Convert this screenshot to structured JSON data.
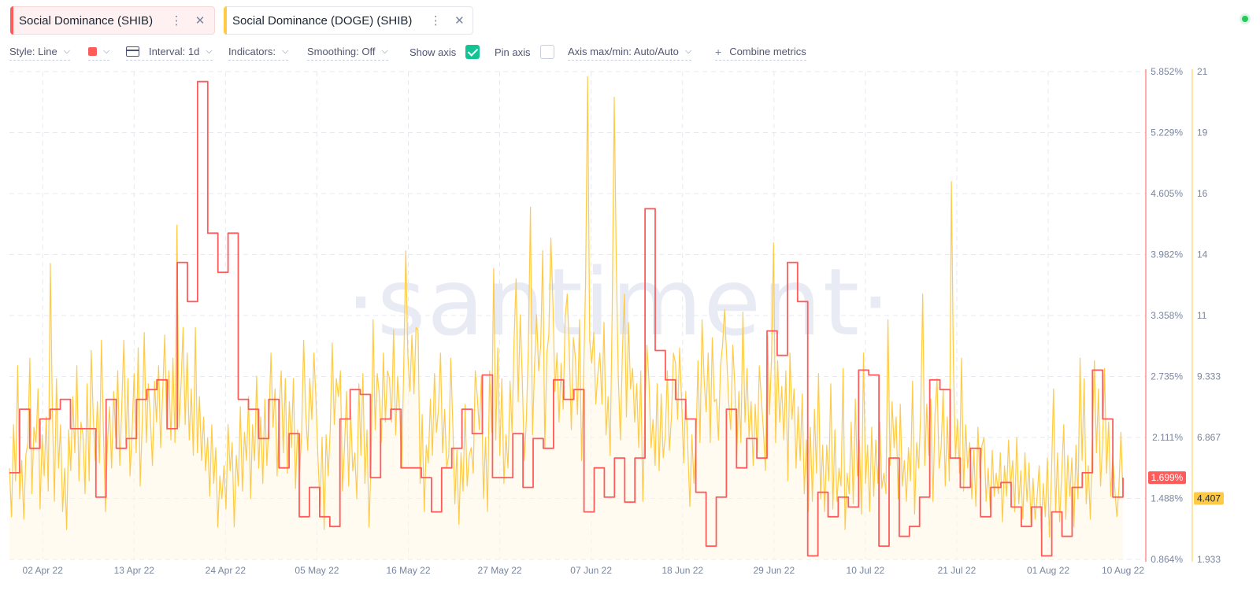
{
  "tabs": [
    {
      "label": "Social Dominance (SHIB)",
      "color": "#ff5b5b"
    },
    {
      "label": "Social Dominance (DOGE) (SHIB)",
      "color": "#ffcb47"
    }
  ],
  "toolbar": {
    "style": "Style: Line",
    "interval": "Interval: 1d",
    "indicators": "Indicators:",
    "smoothing": "Smoothing: Off",
    "show_axis": "Show axis",
    "show_axis_checked": true,
    "pin_axis": "Pin axis",
    "pin_axis_checked": false,
    "axis_maxmin": "Axis max/min: Auto/Auto",
    "combine": "Combine metrics",
    "series_color": "#ff5b5b"
  },
  "watermark": "·santiment·",
  "chart_data": {
    "type": "line",
    "x_range": [
      "2022-03-29",
      "2022-08-10"
    ],
    "x_ticks": [
      "02 Apr 22",
      "13 Apr 22",
      "24 Apr 22",
      "05 May 22",
      "16 May 22",
      "27 May 22",
      "07 Jun 22",
      "18 Jun 22",
      "29 Jun 22",
      "10 Jul 22",
      "21 Jul 22",
      "01 Aug 22",
      "10 Aug 22"
    ],
    "y_axes": {
      "left": {
        "ticks": [
          "0.864%",
          "1.488%",
          "2.111%",
          "2.735%",
          "3.358%",
          "3.982%",
          "4.605%",
          "5.229%",
          "5.852%"
        ],
        "range": [
          0.864,
          5.852
        ],
        "color": "#ff5b5b"
      },
      "right": {
        "ticks": [
          "1.933",
          "4.407",
          "6.867",
          "9.333",
          "11",
          "14",
          "16",
          "19",
          "21"
        ],
        "range": [
          1.933,
          21
        ],
        "color": "#ffcb47"
      }
    },
    "current_values": {
      "shib": "1.699%",
      "doge": "4.407"
    },
    "series": [
      {
        "name": "Social Dominance (SHIB)",
        "axis": "left",
        "color": "#ff5b5b",
        "style": "step",
        "values": [
          1.75,
          1.75,
          2.4,
          2.4,
          2.0,
          2.0,
          2.3,
          2.3,
          2.4,
          2.4,
          2.5,
          2.5,
          2.2,
          2.2,
          2.2,
          2.2,
          2.2,
          1.5,
          1.5,
          2.5,
          2.5,
          2.0,
          2.0,
          2.1,
          2.1,
          2.5,
          2.5,
          2.6,
          2.6,
          2.7,
          2.7,
          2.2,
          2.2,
          3.9,
          3.9,
          3.5,
          3.5,
          5.75,
          5.75,
          4.2,
          4.2,
          3.8,
          3.8,
          4.2,
          4.2,
          2.5,
          2.5,
          2.4,
          2.4,
          2.1,
          2.1,
          2.5,
          2.5,
          1.8,
          1.8,
          2.15,
          2.15,
          1.3,
          1.3,
          1.6,
          1.6,
          1.3,
          1.3,
          1.2,
          1.2,
          2.3,
          2.3,
          2.6,
          2.6,
          2.55,
          2.55,
          1.7,
          1.7,
          2.3,
          2.3,
          2.4,
          2.4,
          1.8,
          1.8,
          1.8,
          1.8,
          1.7,
          1.7,
          1.35,
          1.35,
          1.8,
          1.8,
          2.0,
          2.0,
          2.4,
          2.4,
          2.15,
          2.15,
          2.75,
          2.75,
          1.7,
          1.7,
          1.7,
          1.7,
          2.15,
          2.15,
          1.6,
          1.6,
          2.1,
          2.1,
          2.0,
          2.0,
          2.7,
          2.7,
          2.5,
          2.5,
          2.6,
          2.6,
          1.35,
          1.35,
          1.8,
          1.8,
          1.5,
          1.5,
          1.9,
          1.9,
          1.45,
          1.45,
          1.9,
          1.9,
          4.45,
          4.45,
          3.0,
          3.0,
          2.7,
          2.7,
          2.5,
          2.5,
          2.3,
          2.3,
          1.55,
          1.55,
          1.0,
          1.0,
          1.5,
          1.5,
          2.4,
          2.4,
          1.8,
          1.8,
          2.1,
          2.1,
          1.9,
          1.9,
          3.2,
          3.2,
          2.95,
          2.95,
          3.9,
          3.9,
          3.5,
          3.5,
          0.9,
          0.9,
          1.55,
          1.55,
          1.3,
          1.3,
          1.5,
          1.5,
          1.4,
          1.4,
          2.8,
          2.8,
          2.75,
          2.75,
          1.0,
          1.0,
          1.9,
          1.9,
          1.1,
          1.1,
          1.2,
          1.2,
          1.5,
          1.5,
          2.7,
          2.7,
          2.6,
          2.6,
          1.9,
          1.9,
          1.6,
          1.6,
          2.0,
          2.0,
          1.3,
          1.3,
          1.6,
          1.6,
          1.65,
          1.65,
          1.4,
          1.4,
          1.2,
          1.2,
          1.4,
          1.4,
          0.9,
          0.9,
          1.35,
          1.35,
          1.1,
          1.1,
          1.6,
          1.6,
          1.75,
          1.75,
          2.8,
          2.8,
          2.3,
          2.3,
          1.5,
          1.5,
          1.7
        ]
      },
      {
        "name": "Social Dominance (DOGE) (SHIB)",
        "axis": "right",
        "color": "#ffcb47",
        "style": "line",
        "values": [
          5.5,
          3.6,
          7.2,
          5.0,
          9.5,
          4.3,
          5.8,
          3.5,
          6.0,
          6.5,
          9.8,
          4.5,
          7.1,
          6.5,
          8.6,
          3.9,
          6.8,
          5.2,
          7.5,
          4.6,
          13.5,
          7.8,
          4.2,
          9.0,
          5.5,
          7.2,
          3.8,
          5.5,
          3.1,
          7.0,
          5.4,
          8.3,
          6.1,
          9.5,
          5.0,
          7.3,
          6.8,
          4.5,
          8.8,
          5.0,
          10.1,
          7.5,
          5.8,
          8.1,
          5.7,
          10.5,
          7.0,
          3.8,
          6.5,
          7.9,
          5.5,
          8.5,
          6.7,
          9.3,
          5.6,
          8.0,
          10.5,
          6.4,
          9.0,
          5.2,
          6.9,
          9.2,
          6.1,
          10.2,
          4.8,
          7.3,
          10.8,
          6.5,
          8.8,
          7.4,
          5.6,
          8.9,
          7.3,
          9.5,
          6.3,
          8.5,
          10.7,
          7.0,
          9.3,
          6.6,
          9.8,
          6.5,
          15.0,
          7.1,
          8.8,
          11.0,
          7.2,
          10.0,
          6.6,
          8.6,
          6.0,
          11.0,
          6.1,
          8.3,
          5.8,
          7.5,
          5.4,
          6.7,
          4.4,
          7.2,
          4.9,
          6.3,
          3.2,
          5.2,
          4.3,
          5.6,
          3.9,
          7.2,
          5.4,
          6.5,
          3.2,
          6.0,
          4.8,
          7.9,
          4.6,
          6.9,
          5.8,
          8.3,
          4.3,
          7.2,
          5.8,
          9.1,
          5.5,
          7.5,
          4.9,
          8.2,
          5.6,
          7.3,
          10.0,
          7.1,
          8.6,
          5.2,
          7.8,
          9.3,
          6.1,
          9.0,
          5.3,
          8.1,
          6.3,
          9.0,
          4.7,
          7.0,
          5.3,
          6.8,
          10.5,
          7.7,
          6.2,
          9.0,
          7.4,
          10.0,
          8.2,
          5.9,
          4.0,
          6.7,
          3.1,
          6.8,
          5.2,
          7.0,
          10.4,
          7.2,
          9.0,
          8.3,
          9.3,
          4.6,
          6.4,
          8.5,
          4.8,
          7.8,
          5.4,
          6.1,
          4.3,
          8.8,
          6.0,
          9.2,
          4.9,
          7.0,
          3.2,
          5.8,
          11.3,
          7.0,
          9.2,
          8.4,
          6.5,
          10.0,
          7.3,
          9.3,
          9.0,
          7.3,
          10.9,
          6.8,
          9.1,
          7.7,
          5.5,
          9.5,
          14.0,
          9.9,
          8.5,
          10.7,
          8.4,
          11.0,
          10.9,
          4.9,
          7.6,
          3.8,
          6.4,
          5.7,
          8.2,
          6.0,
          9.2,
          6.9,
          7.8,
          10.0,
          6.1,
          7.8,
          5.5,
          6.0,
          9.8,
          7.2,
          4.1,
          6.2,
          3.3,
          6.1,
          4.6,
          8.0,
          4.8,
          6.0,
          6.3,
          5.3,
          9.3,
          8.3,
          7.0,
          9.1,
          4.3,
          6.7,
          3.8,
          9.3,
          6.9,
          13.3,
          6.6,
          10.2,
          6.0,
          9.0,
          4.9,
          6.8,
          5.5,
          8.9,
          6.9,
          10.5,
          12.9,
          8.1,
          11.5,
          9.0,
          5.8,
          7.4,
          10.3,
          15.7,
          6.8,
          9.5,
          11.5,
          9.3,
          10.3,
          14.0,
          6.3,
          10.0,
          10.7,
          14.5,
          12.0,
          8.5,
          10.0,
          7.3,
          9.6,
          7.8,
          11.4,
          12.3,
          10.1,
          7.0,
          10.6,
          9.8,
          7.6,
          11.3,
          5.8,
          9.1,
          12.8,
          20.8,
          10.5,
          9.6,
          10.8,
          8.0,
          9.2,
          10.0,
          8.0,
          11.2,
          6.8,
          8.3,
          6.0,
          11.7,
          20.0,
          13.5,
          9.0,
          6.6,
          10.0,
          12.3,
          7.5,
          11.2,
          8.6,
          9.4,
          7.3,
          8.8,
          6.3,
          9.3,
          4.2,
          7.8,
          10.3,
          8.9,
          6.3,
          7.4,
          5.6,
          8.8,
          5.4,
          8.4,
          5.9,
          6.8,
          9.3,
          6.2,
          7.5,
          10.0,
          9.6,
          7.4,
          10.2,
          8.1,
          5.7,
          8.5,
          6.3,
          4.0,
          6.8,
          4.9,
          6.5,
          9.7,
          6.5,
          11.3,
          9.0,
          7.7,
          10.0,
          6.5,
          10.6,
          8.1,
          8.2,
          6.6,
          9.5,
          10.3,
          11.7,
          9.9,
          8.1,
          7.0,
          10.3,
          8.8,
          6.0,
          8.5,
          6.5,
          11.6,
          7.3,
          9.4,
          6.7,
          8.1,
          5.6,
          8.0,
          6.1,
          9.5,
          8.2,
          7.0,
          5.4,
          10.7,
          7.6,
          9.8,
          14.3,
          6.5,
          9.7,
          7.3,
          8.7,
          6.6,
          9.3,
          5.0,
          10.0,
          7.4,
          8.6,
          5.5,
          7.9,
          5.8,
          8.4,
          4.5,
          6.6,
          3.8,
          7.1,
          4.2,
          7.8,
          5.3,
          9.2,
          4.3,
          6.4,
          3.8,
          6.4,
          5.0,
          8.8,
          3.9,
          7.0,
          4.2,
          5.5,
          4.8,
          9.4,
          3.1,
          5.3,
          4.5,
          7.3,
          4.1,
          8.2,
          5.2,
          6.6,
          3.7,
          10.0,
          4.9,
          6.4,
          3.8,
          7.1,
          4.4,
          6.6,
          4.9,
          7.3,
          4.7,
          5.3,
          4.5,
          11.3,
          5.6,
          8.1,
          6.3,
          7.5,
          4.3,
          8.0,
          4.8,
          5.8,
          4.2,
          6.3,
          5.0,
          8.9,
          3.7,
          6.5,
          5.5,
          7.7,
          12.3,
          5.6,
          8.0,
          6.0,
          8.2,
          4.2,
          7.6,
          9.0,
          5.5,
          6.3,
          8.6,
          4.8,
          7.5,
          5.0,
          16.7,
          9.5,
          5.9,
          7.4,
          5.3,
          9.8,
          4.6,
          7.2,
          5.5,
          6.5,
          4.3,
          6.2,
          4.0,
          7.1,
          5.1,
          6.4,
          6.7,
          4.2,
          5.5,
          3.9,
          6.2,
          4.4,
          5.3,
          4.5,
          6.1,
          3.4,
          5.6,
          4.4,
          6.6,
          4.8,
          5.8,
          3.8,
          6.7,
          4.1,
          5.4,
          3.5,
          6.1,
          4.2,
          5.7,
          3.3,
          5.1,
          3.5,
          4.4,
          5.6,
          3.0,
          4.9,
          3.6,
          5.9,
          2.8,
          5.3,
          8.6,
          3.8,
          6.1,
          3.4,
          5.3,
          7.2,
          3.5,
          6.0,
          4.4,
          5.9,
          3.2,
          6.4,
          4.3,
          9.8,
          5.8,
          9.0,
          4.1,
          5.6,
          3.5,
          6.7,
          9.7,
          6.1,
          8.6,
          4.8,
          6.5,
          9.4,
          5.3,
          7.3,
          4.4,
          6.0,
          4.7,
          3.6,
          4.7,
          6.9,
          4.4
        ]
      }
    ]
  }
}
